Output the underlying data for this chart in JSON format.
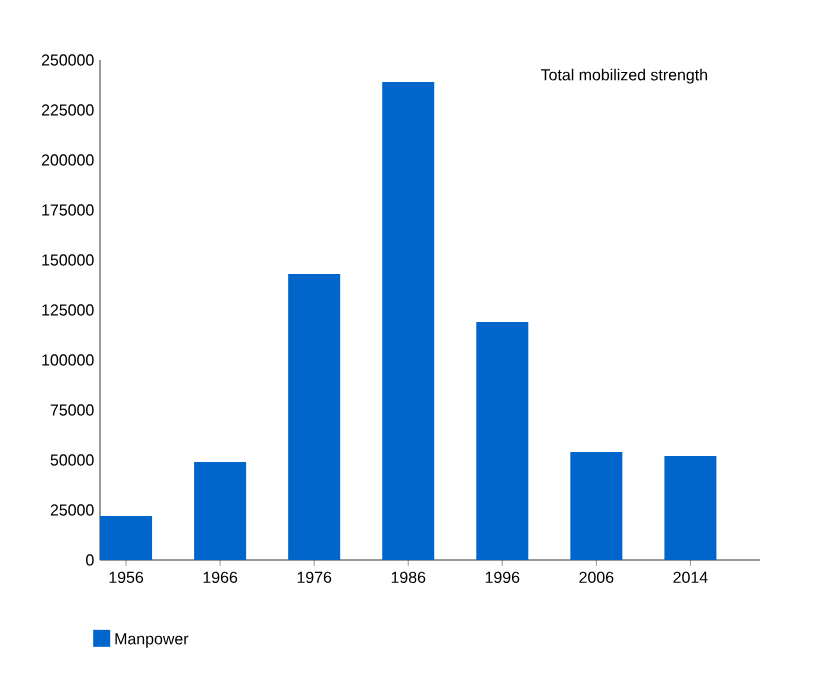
{
  "chart_data": {
    "type": "bar",
    "title": "Total mobilized strength",
    "categories": [
      "1956",
      "1966",
      "1976",
      "1986",
      "1996",
      "2006",
      "2014"
    ],
    "series": [
      {
        "name": "Manpower",
        "color": "#0066cc",
        "values": [
          22000,
          49000,
          143000,
          239000,
          119000,
          54000,
          52000
        ]
      }
    ],
    "ylim": [
      0,
      250000
    ],
    "yticks": [
      0,
      25000,
      50000,
      75000,
      100000,
      125000,
      150000,
      175000,
      200000,
      225000,
      250000
    ],
    "grid": false,
    "legend": "bottom left"
  }
}
